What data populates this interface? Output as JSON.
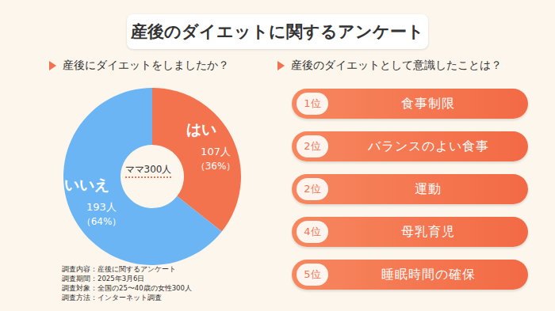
{
  "title": "産後のダイエットに関するアンケート",
  "chart_data": {
    "type": "pie",
    "title": "産後にダイエットをしましたか？",
    "center_label": "ママ300人",
    "categories": [
      "はい",
      "いいえ"
    ],
    "values": [
      107,
      193
    ],
    "value_labels": [
      "107人",
      "193人"
    ],
    "percents": [
      36,
      64
    ],
    "percent_labels": [
      "（36%）",
      "（64%）"
    ],
    "colors": [
      "#f3734f",
      "#6bb5f5"
    ],
    "data_labels": true
  },
  "ranking": {
    "title": "産後のダイエットとして意識したことは？",
    "items": [
      {
        "rank": "1位",
        "label": "食事制限"
      },
      {
        "rank": "2位",
        "label": "バランスのよい食事"
      },
      {
        "rank": "2位",
        "label": "運動"
      },
      {
        "rank": "4位",
        "label": "母乳育児"
      },
      {
        "rank": "5位",
        "label": "睡眠時間の確保"
      }
    ]
  },
  "notes": [
    "調査内容：産後に関するアンケート",
    "調査期間：2025年3月6日",
    "調査対象：全国の25〜40歳の女性300人",
    "調査方法：インターネット調査"
  ]
}
